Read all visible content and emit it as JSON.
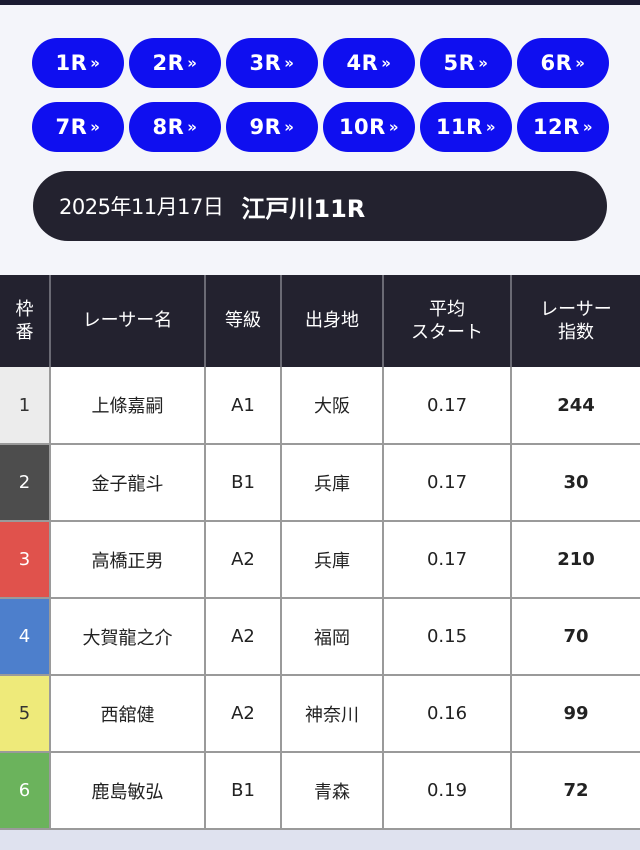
{
  "races": [
    {
      "label": "1R"
    },
    {
      "label": "2R"
    },
    {
      "label": "3R"
    },
    {
      "label": "4R"
    },
    {
      "label": "5R"
    },
    {
      "label": "6R"
    },
    {
      "label": "7R"
    },
    {
      "label": "8R"
    },
    {
      "label": "9R"
    },
    {
      "label": "10R"
    },
    {
      "label": "11R"
    },
    {
      "label": "12R"
    }
  ],
  "race_header": {
    "date": "2025年11月17日",
    "name": "江戸川11R"
  },
  "table": {
    "headers": {
      "frame": [
        "枠",
        "番"
      ],
      "racer": "レーサー名",
      "grade": "等級",
      "origin": "出身地",
      "avg_start": [
        "平均",
        "スタート"
      ],
      "racer_index": [
        "レーサー",
        "指数"
      ]
    },
    "rows": [
      {
        "frame": "1",
        "racer": "上條嘉嗣",
        "grade": "A1",
        "origin": "大阪",
        "avg_start": "0.17",
        "index": "244",
        "color": "#ececec",
        "text_color": "#333333"
      },
      {
        "frame": "2",
        "racer": "金子龍斗",
        "grade": "B1",
        "origin": "兵庫",
        "avg_start": "0.17",
        "index": "30",
        "color": "#4d4d4d",
        "text_color": "#ffffff"
      },
      {
        "frame": "3",
        "racer": "高橋正男",
        "grade": "A2",
        "origin": "兵庫",
        "avg_start": "0.17",
        "index": "210",
        "color": "#e0524c",
        "text_color": "#ffffff"
      },
      {
        "frame": "4",
        "racer": "大賀龍之介",
        "grade": "A2",
        "origin": "福岡",
        "avg_start": "0.15",
        "index": "70",
        "color": "#4d7fcc",
        "text_color": "#ffffff"
      },
      {
        "frame": "5",
        "racer": "西舘健",
        "grade": "A2",
        "origin": "神奈川",
        "avg_start": "0.16",
        "index": "99",
        "color": "#eeea7a",
        "text_color": "#333333"
      },
      {
        "frame": "6",
        "racer": "鹿島敏弘",
        "grade": "B1",
        "origin": "青森",
        "avg_start": "0.19",
        "index": "72",
        "color": "#6bb35c",
        "text_color": "#ffffff"
      }
    ]
  }
}
